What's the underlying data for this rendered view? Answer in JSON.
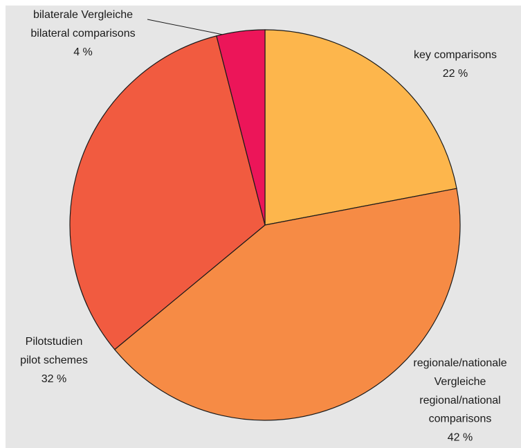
{
  "chart_data": {
    "type": "pie",
    "categories": [
      [
        "key comparisons"
      ],
      [
        "regionale/nationale",
        "Vergleiche",
        "regional/national",
        "comparisons"
      ],
      [
        "Pilotstudien",
        "pilot schemes"
      ],
      [
        "bilaterale Vergleiche",
        "bilateral comparisons"
      ]
    ],
    "values": [
      22,
      42,
      32,
      4
    ],
    "value_labels": [
      "22 %",
      "42 %",
      "32 %",
      "4 %"
    ],
    "colors": [
      "#fdb64c",
      "#f68b45",
      "#f15b40",
      "#ec1559"
    ]
  }
}
